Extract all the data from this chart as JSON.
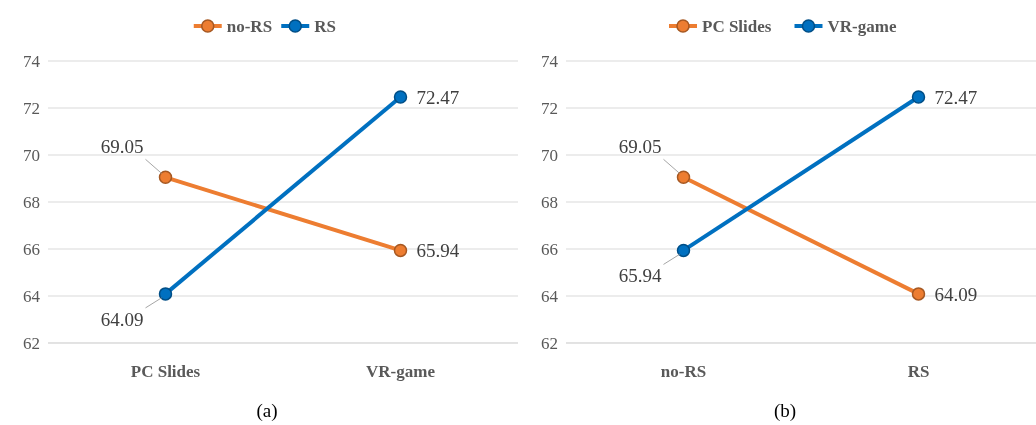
{
  "chart_data": [
    {
      "type": "line",
      "categories": [
        "PC Slides",
        "VR-game"
      ],
      "series": [
        {
          "name": "no-RS",
          "color": "#ed7d31",
          "values": [
            69.05,
            65.94
          ]
        },
        {
          "name": "RS",
          "color": "#0070c0",
          "values": [
            64.09,
            72.47
          ]
        }
      ],
      "ylim": [
        62,
        74
      ],
      "yticks": [
        62,
        64,
        66,
        68,
        70,
        72,
        74
      ],
      "grid": "y",
      "legend": "top",
      "marker": "circle",
      "data_labels": true,
      "annotations": [
        "(a)"
      ]
    },
    {
      "type": "line",
      "categories": [
        "no-RS",
        "RS"
      ],
      "series": [
        {
          "name": "PC Slides",
          "color": "#ed7d31",
          "values": [
            69.05,
            64.09
          ]
        },
        {
          "name": "VR-game",
          "color": "#0070c0",
          "values": [
            65.94,
            72.47
          ]
        }
      ],
      "ylim": [
        62,
        74
      ],
      "yticks": [
        62,
        64,
        66,
        68,
        70,
        72,
        74
      ],
      "grid": "y",
      "legend": "top",
      "marker": "circle",
      "data_labels": true,
      "annotations": [
        "(b)"
      ]
    }
  ]
}
